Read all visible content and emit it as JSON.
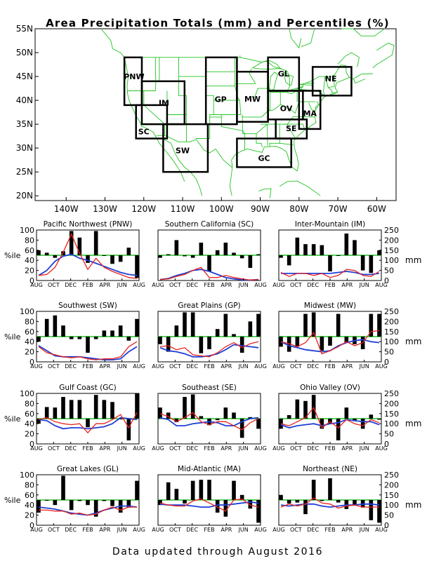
{
  "title": "Area Precipitation Totals (mm) and Percentiles (%)",
  "footer": "Data updated through August 2016",
  "map": {
    "lat_labels": [
      "55N",
      "50N",
      "45N",
      "40N",
      "35N",
      "30N",
      "25N",
      "20N"
    ],
    "lon_labels": [
      "140W",
      "130W",
      "120W",
      "110W",
      "100W",
      "90W",
      "80W",
      "70W",
      "60W"
    ],
    "region_color": "#1f3fd6",
    "coast_color": "#22c322",
    "regions": [
      "PNW",
      "SC",
      "IM",
      "SW",
      "GP",
      "MW",
      "GL",
      "OV",
      "NE",
      "MA",
      "SE",
      "GC"
    ]
  },
  "panel_labels": {
    "pct_axis": "%ile",
    "mm_axis": "mm",
    "pct_ticks": [
      "0",
      "20",
      "40",
      "60",
      "80",
      "100"
    ],
    "mm_ticks": [
      "0",
      "50",
      "100",
      "150",
      "200",
      "250"
    ],
    "x_ticks": [
      "AUG",
      "OCT",
      "DEC",
      "FEB",
      "APR",
      "JUN",
      "AUG"
    ]
  },
  "colors": {
    "bars": "#000000",
    "percentile_50_line": "#22c322",
    "precip_line": "#e8231d",
    "normal_line": "#1f3fd6"
  },
  "chart_data": [
    {
      "type": "bar",
      "title": "Pacific Northwest (PNW)",
      "ylabel": "%ile",
      "y2label": "mm",
      "ylim": [
        0,
        100
      ],
      "y2lim": [
        0,
        250
      ],
      "x_ticks": [
        "AUG",
        "OCT",
        "DEC",
        "FEB",
        "APR",
        "JUN",
        "AUG"
      ],
      "series": [
        {
          "name": "percentile",
          "values": [
            60,
            55,
            45,
            58,
            98,
            85,
            35,
            98,
            50,
            33,
            37,
            65,
            5
          ]
        },
        {
          "name": "precipitation (mm)",
          "values": [
            25,
            30,
            65,
            140,
            230,
            135,
            55,
            110,
            65,
            45,
            30,
            15,
            10
          ]
        },
        {
          "name": "normal (mm)",
          "values": [
            25,
            50,
            95,
            120,
            130,
            110,
            100,
            85,
            70,
            55,
            40,
            30,
            25
          ]
        }
      ]
    },
    {
      "type": "bar",
      "title": "Southern California (SC)",
      "ylabel": "%ile",
      "y2label": "mm",
      "ylim": [
        0,
        100
      ],
      "y2lim": [
        0,
        250
      ],
      "x_ticks": [
        "AUG",
        "OCT",
        "DEC",
        "FEB",
        "APR",
        "JUN",
        "AUG"
      ],
      "series": [
        {
          "name": "percentile",
          "values": [
            45,
            52,
            80,
            48,
            45,
            75,
            18,
            60,
            75,
            55,
            44,
            25,
            52
          ]
        },
        {
          "name": "precipitation (mm)",
          "values": [
            5,
            8,
            20,
            30,
            50,
            65,
            15,
            15,
            25,
            15,
            8,
            2,
            5
          ]
        },
        {
          "name": "normal (mm)",
          "values": [
            5,
            10,
            25,
            35,
            50,
            55,
            45,
            30,
            15,
            8,
            3,
            2,
            5
          ]
        }
      ]
    },
    {
      "type": "bar",
      "title": "Inter-Mountain (IM)",
      "ylabel": "%ile",
      "y2label": "mm",
      "ylim": [
        0,
        100
      ],
      "y2lim": [
        0,
        250
      ],
      "x_ticks": [
        "AUG",
        "OCT",
        "DEC",
        "FEB",
        "APR",
        "JUN",
        "AUG"
      ],
      "series": [
        {
          "name": "percentile",
          "values": [
            45,
            30,
            85,
            72,
            72,
            70,
            18,
            50,
            93,
            80,
            20,
            15,
            60
          ]
        },
        {
          "name": "precipitation (mm)",
          "values": [
            40,
            20,
            35,
            35,
            25,
            35,
            15,
            25,
            55,
            50,
            25,
            20,
            45
          ]
        },
        {
          "name": "normal (mm)",
          "values": [
            35,
            35,
            35,
            35,
            35,
            35,
            35,
            40,
            45,
            40,
            30,
            30,
            35
          ]
        }
      ]
    },
    {
      "type": "bar",
      "title": "Southwest (SW)",
      "ylabel": "%ile",
      "y2label": "mm",
      "ylim": [
        0,
        100
      ],
      "y2lim": [
        0,
        250
      ],
      "x_ticks": [
        "AUG",
        "OCT",
        "DEC",
        "FEB",
        "APR",
        "JUN",
        "AUG"
      ],
      "series": [
        {
          "name": "percentile",
          "values": [
            40,
            85,
            92,
            72,
            45,
            45,
            18,
            45,
            62,
            62,
            72,
            42,
            85
          ]
        },
        {
          "name": "precipitation (mm)",
          "values": [
            75,
            45,
            35,
            25,
            20,
            25,
            15,
            10,
            15,
            15,
            25,
            75,
            100
          ]
        },
        {
          "name": "normal (mm)",
          "values": [
            80,
            55,
            30,
            25,
            25,
            25,
            20,
            15,
            10,
            10,
            15,
            50,
            75
          ]
        }
      ]
    },
    {
      "type": "bar",
      "title": "Great Plains (GP)",
      "ylabel": "%ile",
      "y2label": "mm",
      "ylim": [
        0,
        100
      ],
      "y2lim": [
        0,
        250
      ],
      "x_ticks": [
        "AUG",
        "OCT",
        "DEC",
        "FEB",
        "APR",
        "JUN",
        "AUG"
      ],
      "series": [
        {
          "name": "percentile",
          "values": [
            35,
            20,
            72,
            98,
            98,
            17,
            25,
            65,
            95,
            55,
            18,
            80,
            95
          ]
        },
        {
          "name": "precipitation (mm)",
          "values": [
            75,
            80,
            60,
            70,
            35,
            30,
            25,
            45,
            75,
            95,
            70,
            90,
            100
          ]
        },
        {
          "name": "normal (mm)",
          "values": [
            70,
            55,
            50,
            40,
            25,
            25,
            30,
            40,
            60,
            85,
            80,
            75,
            70
          ]
        }
      ]
    },
    {
      "type": "bar",
      "title": "Midwest (MW)",
      "ylabel": "%ile",
      "y2label": "mm",
      "ylim": [
        0,
        100
      ],
      "y2lim": [
        0,
        250
      ],
      "x_ticks": [
        "AUG",
        "OCT",
        "DEC",
        "FEB",
        "APR",
        "JUN",
        "AUG"
      ],
      "series": [
        {
          "name": "percentile",
          "values": [
            30,
            20,
            30,
            95,
            98,
            22,
            32,
            95,
            38,
            35,
            25,
            95,
            95
          ]
        },
        {
          "name": "precipitation (mm)",
          "values": [
            100,
            90,
            75,
            95,
            145,
            40,
            55,
            75,
            100,
            80,
            95,
            150,
            155
          ]
        },
        {
          "name": "normal (mm)",
          "values": [
            100,
            80,
            70,
            60,
            55,
            50,
            55,
            80,
            95,
            105,
            110,
            100,
            95
          ]
        }
      ]
    },
    {
      "type": "bar",
      "title": "Gulf Coast (GC)",
      "ylabel": "%ile",
      "y2label": "mm",
      "ylim": [
        0,
        100
      ],
      "y2lim": [
        0,
        250
      ],
      "x_ticks": [
        "AUG",
        "OCT",
        "DEC",
        "FEB",
        "APR",
        "JUN",
        "AUG"
      ],
      "series": [
        {
          "name": "percentile",
          "values": [
            40,
            73,
            72,
            93,
            87,
            87,
            33,
            97,
            87,
            83,
            50,
            7,
            100
          ]
        },
        {
          "name": "precipitation (mm)",
          "values": [
            120,
            130,
            110,
            100,
            95,
            100,
            55,
            100,
            100,
            120,
            145,
            80,
            155
          ]
        },
        {
          "name": "normal (mm)",
          "values": [
            120,
            115,
            90,
            75,
            80,
            80,
            75,
            80,
            85,
            100,
            130,
            125,
            120
          ]
        }
      ]
    },
    {
      "type": "bar",
      "title": "Southeast (SE)",
      "ylabel": "%ile",
      "y2label": "mm",
      "ylim": [
        0,
        100
      ],
      "y2lim": [
        0,
        250
      ],
      "x_ticks": [
        "AUG",
        "OCT",
        "DEC",
        "FEB",
        "APR",
        "JUN",
        "AUG"
      ],
      "series": [
        {
          "name": "percentile",
          "values": [
            72,
            62,
            43,
            93,
            98,
            55,
            37,
            47,
            72,
            62,
            12,
            53,
            30
          ]
        },
        {
          "name": "precipitation (mm)",
          "values": [
            150,
            135,
            110,
            130,
            155,
            110,
            95,
            110,
            110,
            90,
            70,
            105,
            125
          ]
        },
        {
          "name": "normal (mm)",
          "values": [
            130,
            120,
            90,
            90,
            100,
            105,
            110,
            105,
            90,
            90,
            110,
            125,
            130
          ]
        }
      ]
    },
    {
      "type": "bar",
      "title": "Ohio Valley (OV)",
      "ylabel": "%ile",
      "y2label": "mm",
      "ylim": [
        0,
        100
      ],
      "y2lim": [
        0,
        250
      ],
      "x_ticks": [
        "AUG",
        "OCT",
        "DEC",
        "FEB",
        "APR",
        "JUN",
        "AUG"
      ],
      "series": [
        {
          "name": "percentile",
          "values": [
            30,
            57,
            88,
            85,
            97,
            30,
            40,
            7,
            72,
            45,
            30,
            58,
            48
          ]
        },
        {
          "name": "precipitation (mm)",
          "values": [
            100,
            90,
            110,
            130,
            180,
            80,
            110,
            80,
            120,
            100,
            90,
            120,
            105
          ]
        },
        {
          "name": "normal (mm)",
          "values": [
            95,
            80,
            90,
            95,
            100,
            90,
            100,
            105,
            120,
            115,
            110,
            110,
            95
          ]
        }
      ]
    },
    {
      "type": "bar",
      "title": "Great Lakes (GL)",
      "ylabel": "%ile",
      "y2label": "mm",
      "ylim": [
        0,
        100
      ],
      "y2lim": [
        0,
        250
      ],
      "x_ticks": [
        "AUG",
        "OCT",
        "DEC",
        "FEB",
        "APR",
        "JUN",
        "AUG"
      ],
      "series": [
        {
          "name": "percentile",
          "values": [
            25,
            50,
            40,
            98,
            30,
            48,
            40,
            17,
            48,
            38,
            25,
            35,
            88
          ]
        },
        {
          "name": "precipitation (mm)",
          "values": [
            75,
            75,
            70,
            70,
            55,
            60,
            50,
            55,
            75,
            90,
            75,
            90,
            90
          ]
        },
        {
          "name": "normal (mm)",
          "values": [
            90,
            85,
            80,
            70,
            60,
            55,
            50,
            60,
            75,
            85,
            95,
            95,
            90
          ]
        }
      ]
    },
    {
      "type": "bar",
      "title": "Mid-Atlantic (MA)",
      "ylabel": "%ile",
      "y2label": "mm",
      "ylim": [
        0,
        100
      ],
      "y2lim": [
        0,
        250
      ],
      "x_ticks": [
        "AUG",
        "OCT",
        "DEC",
        "FEB",
        "APR",
        "JUN",
        "AUG"
      ],
      "series": [
        {
          "name": "percentile",
          "values": [
            40,
            85,
            72,
            43,
            88,
            90,
            90,
            25,
            17,
            88,
            60,
            33,
            5
          ]
        },
        {
          "name": "precipitation (mm)",
          "values": [
            110,
            100,
            95,
            95,
            120,
            130,
            110,
            90,
            70,
            125,
            130,
            100,
            90
          ]
        },
        {
          "name": "normal (mm)",
          "values": [
            105,
            100,
            100,
            100,
            95,
            90,
            90,
            100,
            100,
            105,
            110,
            115,
            110
          ]
        }
      ]
    },
    {
      "type": "bar",
      "title": "Northeast (NE)",
      "ylabel": "%ile",
      "y2label": "mm",
      "ylim": [
        0,
        100
      ],
      "y2lim": [
        0,
        250
      ],
      "x_ticks": [
        "AUG",
        "OCT",
        "DEC",
        "FEB",
        "APR",
        "JUN",
        "AUG"
      ],
      "series": [
        {
          "name": "percentile",
          "values": [
            60,
            43,
            45,
            22,
            90,
            48,
            93,
            45,
            32,
            40,
            35,
            10,
            5
          ]
        },
        {
          "name": "precipitation (mm)",
          "values": [
            90,
            105,
            95,
            105,
            135,
            110,
            105,
            85,
            95,
            100,
            90,
            90,
            90
          ]
        },
        {
          "name": "normal (mm)",
          "values": [
            100,
            95,
            100,
            105,
            105,
            95,
            90,
            95,
            100,
            100,
            105,
            105,
            100
          ]
        }
      ]
    }
  ]
}
